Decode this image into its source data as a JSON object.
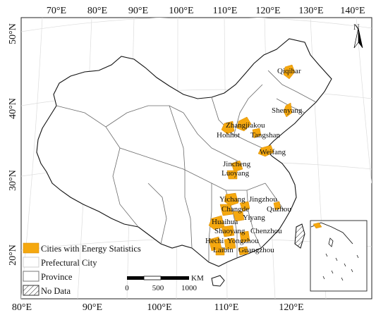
{
  "graticule": {
    "top_ticks": [
      "70°E",
      "80°E",
      "90°E",
      "100°E",
      "110°E",
      "120°E",
      "130°E",
      "140°E"
    ],
    "bottom_ticks": [
      "80°E",
      "90°E",
      "100°E",
      "110°E",
      "120°E"
    ],
    "left_ticks": [
      "50°N",
      "40°N",
      "30°N",
      "20°N"
    ]
  },
  "cities": [
    "Qiqihar",
    "Shenyang",
    "Zhangjiakou",
    "Hohhot",
    "Tangshan",
    "Weifang",
    "Jincheng",
    "Luoyang",
    "Yichang",
    "Jingzhou",
    "Changde",
    "Quzhou",
    "Yiyang",
    "Huaihua",
    "Shaoyang",
    "Chenzhou",
    "Hechi",
    "Yongzhou",
    "Laibin",
    "Guangzhou"
  ],
  "legend": {
    "items": [
      {
        "label": "Cities with Energy Statistics",
        "symbol": "fill",
        "color": "#f5a80f"
      },
      {
        "label": "Prefectural City",
        "symbol": "outline",
        "color": "#cfcfcf"
      },
      {
        "label": "Province",
        "symbol": "outline",
        "color": "#777777"
      },
      {
        "label": "No Data",
        "symbol": "hatch",
        "color": "#333333"
      }
    ]
  },
  "scale_bar": {
    "unit": "KM",
    "labels": [
      "0",
      "500",
      "1000"
    ]
  },
  "north_arrow": {
    "label": "N"
  },
  "colors": {
    "highlight": "#f5a80f",
    "province": "#6b6b6b",
    "prefecture": "#d2d2d2",
    "outline": "#111111"
  }
}
